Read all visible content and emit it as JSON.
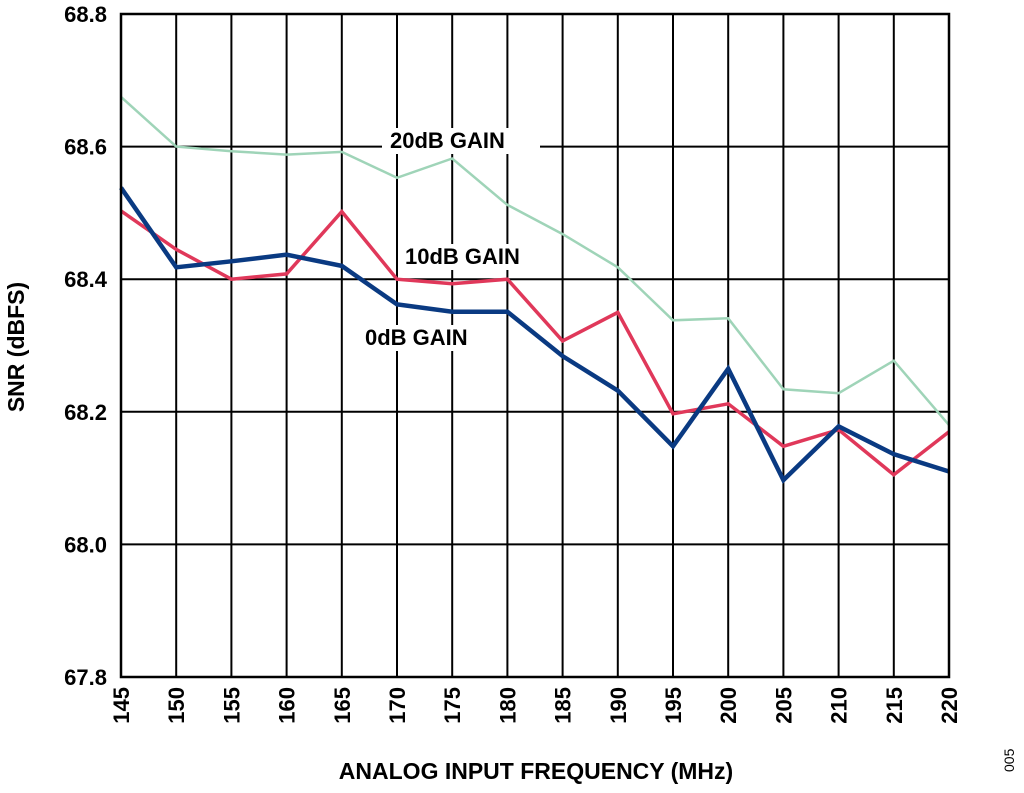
{
  "chart_data": {
    "type": "line",
    "xlabel": "ANALOG INPUT FREQUENCY (MHz)",
    "ylabel": "SNR (dBFS)",
    "xlim": [
      145,
      220
    ],
    "ylim": [
      67.8,
      68.8
    ],
    "x_ticks": [
      "145",
      "150",
      "155",
      "160",
      "165",
      "170",
      "175",
      "180",
      "185",
      "190",
      "195",
      "200",
      "205",
      "210",
      "215",
      "220"
    ],
    "y_ticks": [
      "67.8",
      "68.0",
      "68.2",
      "68.4",
      "68.6",
      "68.8"
    ],
    "grid": true,
    "x": [
      145,
      150,
      155,
      160,
      165,
      170,
      175,
      180,
      185,
      190,
      195,
      200,
      205,
      210,
      215,
      220
    ],
    "series": [
      {
        "name": "20dB GAIN",
        "color": "#9fd4b8",
        "values": [
          68.675,
          68.6,
          68.593,
          68.588,
          68.592,
          68.553,
          68.582,
          68.512,
          68.468,
          68.418,
          68.338,
          68.341,
          68.234,
          68.228,
          68.277,
          68.18
        ]
      },
      {
        "name": "10dB GAIN",
        "color": "#e0385a",
        "values": [
          68.503,
          68.445,
          68.4,
          68.408,
          68.502,
          68.4,
          68.393,
          68.4,
          68.307,
          68.35,
          68.197,
          68.212,
          68.148,
          68.173,
          68.105,
          68.17
        ]
      },
      {
        "name": "0dB GAIN",
        "color": "#0a3a82",
        "values": [
          68.538,
          68.418,
          68.427,
          68.437,
          68.42,
          68.362,
          68.351,
          68.351,
          68.284,
          68.232,
          68.148,
          68.265,
          68.097,
          68.178,
          68.136,
          68.11
        ]
      }
    ]
  },
  "figure_id": "005"
}
